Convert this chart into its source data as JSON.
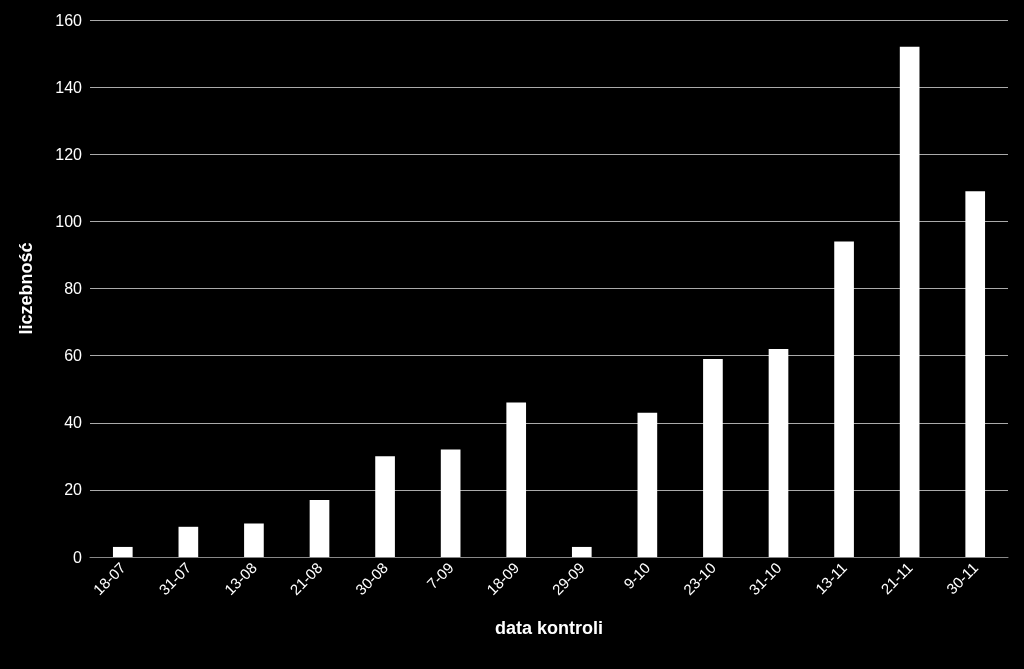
{
  "chart_data": {
    "type": "bar",
    "xlabel": "data kontroli",
    "ylabel": "liczebność",
    "categories": [
      "18-07",
      "31-07",
      "13-08",
      "21-08",
      "30-08",
      "7-09",
      "18-09",
      "29-09",
      "9-10",
      "23-10",
      "31-10",
      "13-11",
      "21-11",
      "30-11"
    ],
    "values": [
      3,
      9,
      10,
      17,
      30,
      32,
      46,
      3,
      43,
      59,
      62,
      94,
      152,
      109
    ],
    "color": "#ffffff",
    "ylim": [
      0,
      160
    ],
    "yticks": [
      0,
      20,
      40,
      60,
      80,
      100,
      120,
      140,
      160
    ],
    "grid": "y"
  }
}
